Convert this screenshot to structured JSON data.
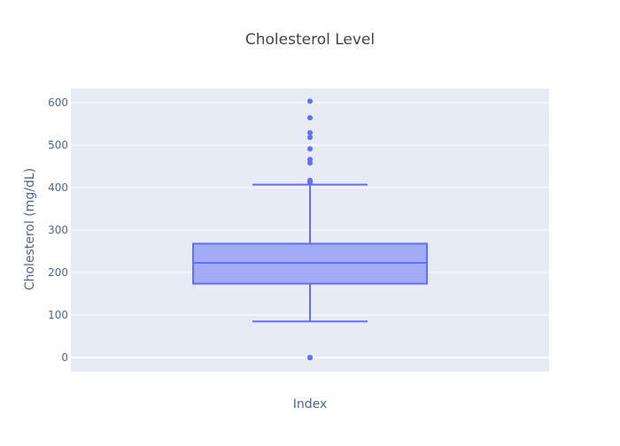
{
  "chart_data": {
    "type": "box",
    "title": "Cholesterol Level",
    "xlabel": "Index",
    "ylabel": "Cholesterol (mg/dL)",
    "ylim": [
      -33,
      633
    ],
    "yticks": [
      0,
      100,
      200,
      300,
      400,
      500,
      600
    ],
    "grid": true,
    "legend": "none",
    "colors": {
      "plot_background": "#E5ECF6",
      "grid": "#ffffff",
      "box_fill": "#A3AAF6",
      "box_line": "#636EFA"
    },
    "box": {
      "lower_fence": 85,
      "q1": 174,
      "median": 223,
      "q3": 268,
      "upper_fence": 407
    },
    "outliers": [
      0,
      0,
      0,
      412,
      414,
      417,
      458,
      466,
      491,
      518,
      529,
      564,
      603
    ]
  }
}
